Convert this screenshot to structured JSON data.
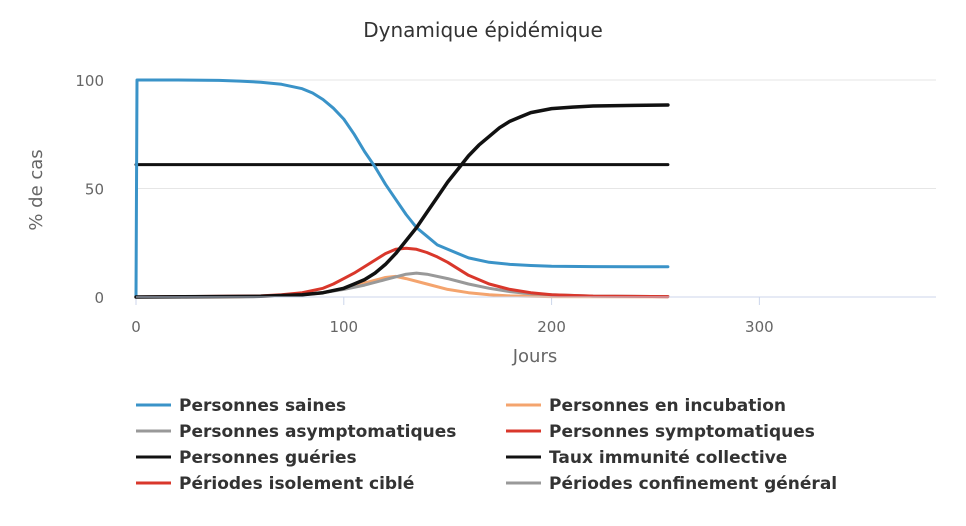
{
  "chart_data": {
    "type": "line",
    "title": "Dynamique épidémique",
    "xlabel": "Jours",
    "ylabel": "% de cas",
    "xlim": [
      0,
      385
    ],
    "ylim": [
      0,
      100
    ],
    "xticks": [
      "0",
      "100",
      "200",
      "300"
    ],
    "xtick_values": [
      0,
      100,
      200,
      300
    ],
    "yticks": [
      "0",
      "50",
      "100"
    ],
    "ytick_values": [
      0,
      50,
      100
    ],
    "grid": "horizontal",
    "legend": "bottom",
    "series": [
      {
        "name": "Personnes saines",
        "color": "#3a93c8",
        "width": 3,
        "x": [
          0,
          0.5,
          20,
          40,
          50,
          60,
          70,
          80,
          85,
          90,
          95,
          100,
          105,
          110,
          115,
          120,
          125,
          130,
          135,
          140,
          145,
          150,
          160,
          170,
          180,
          190,
          200,
          220,
          240,
          256
        ],
        "y": [
          0,
          100,
          100,
          99.8,
          99.5,
          99,
          98,
          96,
          94,
          91,
          87,
          82,
          75,
          67,
          60,
          52,
          45,
          38,
          32,
          28,
          24,
          22,
          18,
          16,
          15,
          14.5,
          14.2,
          14,
          13.9,
          13.9
        ]
      },
      {
        "name": "Personnes en incubation",
        "color": "#f4a46e",
        "width": 3,
        "x": [
          0,
          50,
          70,
          80,
          90,
          100,
          110,
          120,
          125,
          130,
          140,
          150,
          160,
          170,
          180,
          200,
          256
        ],
        "y": [
          0,
          0.2,
          0.5,
          1,
          2,
          4,
          6.5,
          9,
          9.5,
          8.5,
          6,
          3.5,
          2,
          1,
          0.5,
          0.2,
          0.1
        ]
      },
      {
        "name": "Personnes asymptomatiques",
        "color": "#999999",
        "width": 3,
        "x": [
          0,
          60,
          80,
          90,
          100,
          110,
          120,
          130,
          135,
          140,
          150,
          160,
          170,
          180,
          190,
          200,
          220,
          256
        ],
        "y": [
          0,
          0.3,
          1,
          2,
          3.5,
          5.5,
          8,
          10.5,
          11,
          10.5,
          8.5,
          6,
          4,
          2.5,
          1.5,
          1,
          0.4,
          0.2
        ]
      },
      {
        "name": "Personnes symptomatiques",
        "color": "#d9372b",
        "width": 3,
        "x": [
          0,
          60,
          70,
          80,
          90,
          95,
          100,
          105,
          110,
          115,
          120,
          125,
          130,
          135,
          140,
          145,
          150,
          155,
          160,
          170,
          180,
          190,
          200,
          220,
          256
        ],
        "y": [
          0,
          0.5,
          1,
          2,
          4,
          6,
          8.5,
          11,
          14,
          17,
          20,
          22,
          22.5,
          22,
          20.5,
          18.5,
          16,
          13,
          10,
          6,
          3.5,
          2,
          1,
          0.4,
          0.2
        ]
      },
      {
        "name": "Personnes guéries",
        "color": "#111111",
        "width": 3.5,
        "x": [
          0,
          60,
          80,
          90,
          100,
          105,
          110,
          115,
          120,
          125,
          130,
          135,
          140,
          145,
          150,
          155,
          160,
          165,
          170,
          175,
          180,
          185,
          190,
          200,
          210,
          220,
          240,
          256
        ],
        "y": [
          0,
          0.3,
          1,
          2,
          4,
          6,
          8,
          11,
          15,
          20,
          26,
          32,
          39,
          46,
          53,
          59,
          65,
          70,
          74,
          78,
          81,
          83,
          85,
          86.8,
          87.5,
          88,
          88.3,
          88.5
        ]
      },
      {
        "name": "Taux immunité collective",
        "color": "#111111",
        "width": 3,
        "x": [
          0,
          256
        ],
        "y": [
          61,
          61
        ]
      },
      {
        "name": "Périodes isolement ciblé",
        "color": "#d9372b",
        "width": 3,
        "x": [],
        "y": []
      },
      {
        "name": "Périodes confinement général",
        "color": "#999999",
        "width": 3,
        "x": [],
        "y": []
      }
    ]
  }
}
